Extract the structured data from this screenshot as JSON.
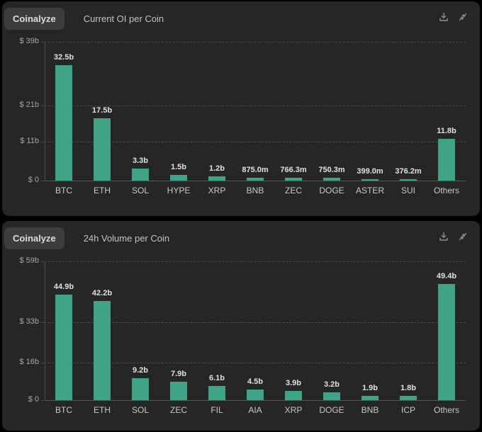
{
  "brand": "Coinalyze",
  "colors": {
    "page_bg": "#000000",
    "panel_bg": "#262626",
    "badge_bg": "#3d3d3d",
    "bar": "#40a287",
    "grid": "#4a4a4a",
    "value_label": "#e0e0e0",
    "axis_label": "#a6a6a6",
    "category_label": "#c9c9c9",
    "title": "#c4c4c4",
    "icon": "#8f8f8f"
  },
  "panels": [
    {
      "badge": "Coinalyze",
      "title": "Current OI per Coin",
      "icons": [
        "download-icon",
        "diagonal-arrows-icon"
      ],
      "chart_data": {
        "type": "bar",
        "title": "Current OI per Coin",
        "categories": [
          "BTC",
          "ETH",
          "SOL",
          "HYPE",
          "XRP",
          "BNB",
          "ZEC",
          "DOGE",
          "ASTER",
          "SUI",
          "Others"
        ],
        "values_billions": [
          32.5,
          17.5,
          3.3,
          1.5,
          1.2,
          0.875,
          0.7663,
          0.7503,
          0.399,
          0.3762,
          11.8
        ],
        "value_labels": [
          "32.5b",
          "17.5b",
          "3.3b",
          "1.5b",
          "1.2b",
          "875.0m",
          "766.3m",
          "750.3m",
          "399.0m",
          "376.2m",
          "11.8b"
        ],
        "yticks": [
          {
            "label": "$ 39b",
            "value": 39
          },
          {
            "label": "$ 21b",
            "value": 21
          },
          {
            "label": "$ 11b",
            "value": 11
          },
          {
            "label": "$ 0",
            "value": 0
          }
        ],
        "ylim": [
          0,
          39
        ],
        "grid": "dashed-horizontal",
        "legend": "none",
        "xlabel": "",
        "ylabel": "USD"
      }
    },
    {
      "badge": "Coinalyze",
      "title": "24h Volume per Coin",
      "icons": [
        "download-icon",
        "diagonal-arrows-icon"
      ],
      "chart_data": {
        "type": "bar",
        "title": "24h Volume per Coin",
        "categories": [
          "BTC",
          "ETH",
          "SOL",
          "ZEC",
          "FIL",
          "AIA",
          "XRP",
          "DOGE",
          "BNB",
          "ICP",
          "Others"
        ],
        "values_billions": [
          44.9,
          42.2,
          9.2,
          7.9,
          6.1,
          4.5,
          3.9,
          3.2,
          1.9,
          1.8,
          49.4
        ],
        "value_labels": [
          "44.9b",
          "42.2b",
          "9.2b",
          "7.9b",
          "6.1b",
          "4.5b",
          "3.9b",
          "3.2b",
          "1.9b",
          "1.8b",
          "49.4b"
        ],
        "yticks": [
          {
            "label": "$ 59b",
            "value": 59
          },
          {
            "label": "$ 33b",
            "value": 33
          },
          {
            "label": "$ 16b",
            "value": 16
          },
          {
            "label": "$ 0",
            "value": 0
          }
        ],
        "ylim": [
          0,
          59
        ],
        "grid": "dashed-horizontal",
        "legend": "none",
        "xlabel": "",
        "ylabel": "USD"
      }
    }
  ]
}
